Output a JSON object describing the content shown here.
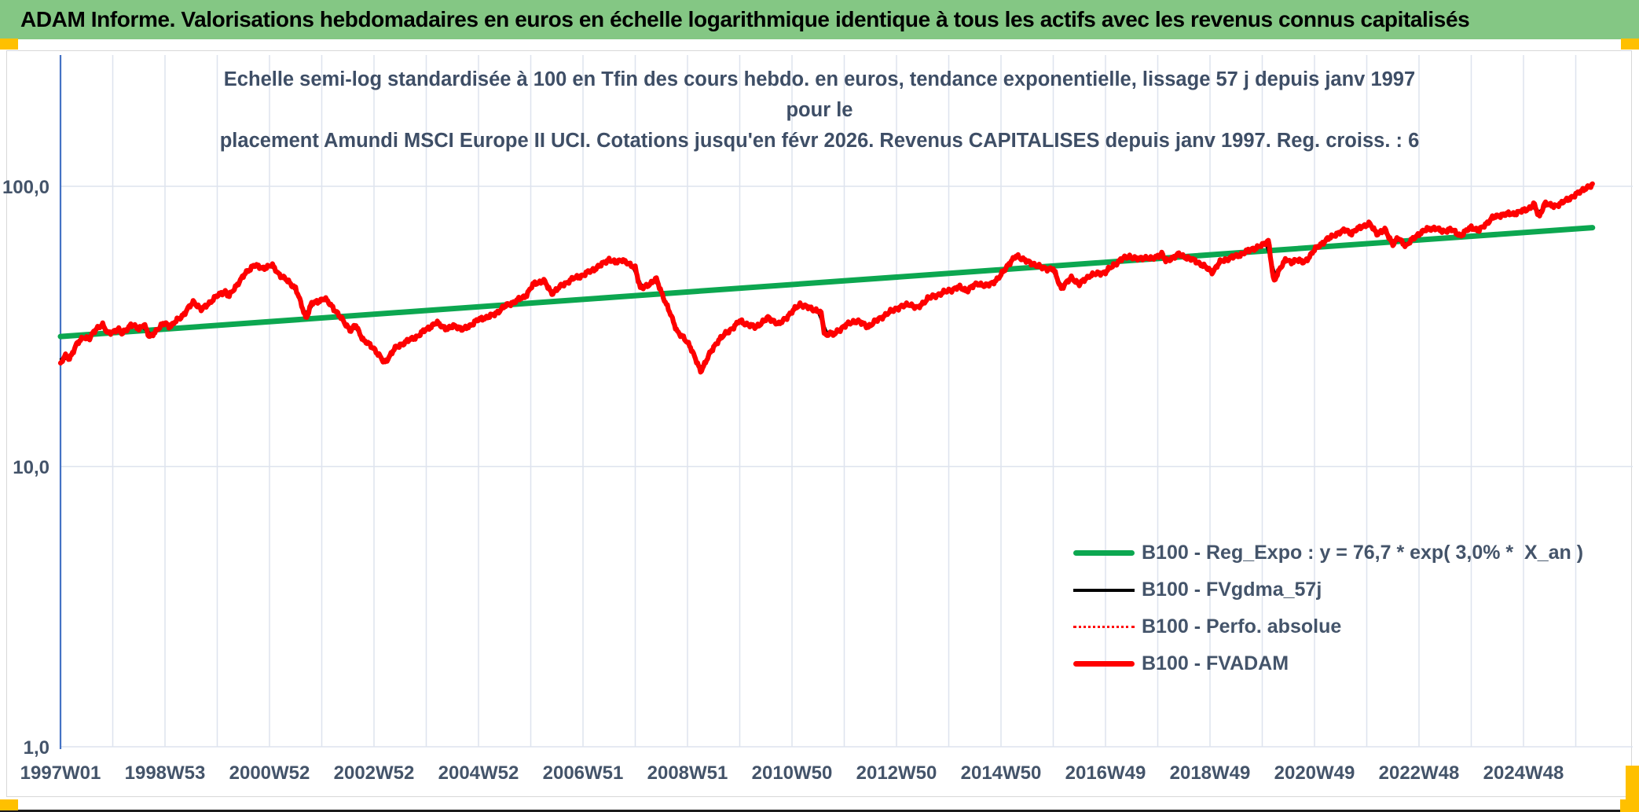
{
  "header": {
    "title": "ADAM Informe. Valorisations hebdomadaires en euros en échelle logarithmique identique à tous les actifs avec les revenus connus capitalisés"
  },
  "subtitle": {
    "line1": "Echelle semi-log standardisée à 100 en Tfin des cours hebdo. en euros, tendance exponentielle, lissage 57 j depuis janv 1997 pour le",
    "line2": "placement Amundi MSCI Europe II UCI. Cotations jusqu'en févr 2026. Revenus CAPITALISES depuis janv 1997. Reg. croiss. : 6"
  },
  "colors": {
    "banner_bg": "#84c784",
    "accent_orange": "#ffc000",
    "text_dark_blue": "#44546a",
    "grid": "#dee3ee",
    "axis_line_blue": "#4472c4",
    "trend_green": "#0ca750",
    "series_red": "#ff0000",
    "series_black": "#000000"
  },
  "x_axis": {
    "labels": [
      "1997W01",
      "1998W53",
      "2000W52",
      "2002W52",
      "2004W52",
      "2006W51",
      "2008W51",
      "2010W50",
      "2012W50",
      "2014W50",
      "2016W49",
      "2018W49",
      "2020W49",
      "2022W48",
      "2024W48"
    ]
  },
  "y_axis": {
    "labels": [
      "100,0",
      "10,0",
      "1,0"
    ],
    "values": [
      100,
      10,
      1
    ]
  },
  "legend": {
    "items": [
      {
        "label": "B100 - Reg_Expo : y = 76,7 * exp( 3,0% *  X_an )",
        "swatch": "green-solid"
      },
      {
        "label": "B100 - FVgdma_57j",
        "swatch": "black-thin"
      },
      {
        "label": "B100 - Perfo. absolue",
        "swatch": "red-dotted"
      },
      {
        "label": "B100 - FVADAM",
        "swatch": "red-solid"
      }
    ]
  },
  "chart_data": {
    "type": "line",
    "title": "Echelle semi-log standardisée à 100 en Tfin des cours hebdo. en euros, tendance exponentielle, lissage 57 j depuis janv 1997 pour le placement Amundi MSCI Europe II UCI. Cotations jusqu'en févr 2026. Revenus CAPITALISES depuis janv 1997. Reg. croiss. : 6",
    "x_axis": {
      "unit": "year (weekly cotations)",
      "range": [
        1997.0,
        2026.32
      ],
      "tick_step_years": 2
    },
    "y_axis": {
      "scale": "log10",
      "ticks": [
        1,
        10,
        100
      ],
      "range": [
        1,
        290
      ],
      "standardized": "100 at Tfin (févr 2026)"
    },
    "legend_position": "inside lower-right",
    "grid": true,
    "series": [
      {
        "name": "B100 - Reg_Expo : y = 76,7 * exp( 3,0% *  X_an )",
        "type": "exponential-trend",
        "color": "#0ca750",
        "points": [
          [
            1997.0,
            29.1
          ],
          [
            2026.32,
            71.2
          ]
        ]
      },
      {
        "name": "B100 - FVgdma_57j",
        "type": "line",
        "color": "#000000",
        "derived": "57-day (≈8-week) moving average of B100 - FVADAM"
      },
      {
        "name": "B100 - Perfo. absolue",
        "type": "line-dotted",
        "color": "#ff0000",
        "derived": "coincides with B100 - FVADAM (revenus capitalisés)"
      },
      {
        "name": "B100 - FVADAM",
        "type": "line",
        "color": "#ff0000",
        "points": [
          [
            1997.0,
            23.2
          ],
          [
            1997.08,
            24.8
          ],
          [
            1997.17,
            24.2
          ],
          [
            1997.3,
            27.2
          ],
          [
            1997.45,
            29.0
          ],
          [
            1997.55,
            28.6
          ],
          [
            1997.7,
            31.2
          ],
          [
            1997.8,
            32.3
          ],
          [
            1997.9,
            29.8
          ],
          [
            1998.0,
            30.3
          ],
          [
            1998.1,
            31.0
          ],
          [
            1998.17,
            29.7
          ],
          [
            1998.35,
            32.1
          ],
          [
            1998.5,
            31.0
          ],
          [
            1998.6,
            32.3
          ],
          [
            1998.7,
            28.8
          ],
          [
            1998.8,
            30.2
          ],
          [
            1999.0,
            32.6
          ],
          [
            1999.1,
            31.6
          ],
          [
            1999.35,
            34.8
          ],
          [
            1999.55,
            38.8
          ],
          [
            1999.7,
            36.2
          ],
          [
            1999.85,
            38.5
          ],
          [
            2000.0,
            40.6
          ],
          [
            2000.15,
            42.4
          ],
          [
            2000.22,
            40.3
          ],
          [
            2000.4,
            45.2
          ],
          [
            2000.55,
            49.1
          ],
          [
            2000.7,
            52.4
          ],
          [
            2000.85,
            51.0
          ],
          [
            2001.05,
            52.2
          ],
          [
            2001.2,
            48.2
          ],
          [
            2001.35,
            45.9
          ],
          [
            2001.5,
            43.3
          ],
          [
            2001.7,
            33.8
          ],
          [
            2001.8,
            38.0
          ],
          [
            2002.05,
            39.8
          ],
          [
            2002.2,
            37.3
          ],
          [
            2002.35,
            34.2
          ],
          [
            2002.56,
            30.5
          ],
          [
            2002.65,
            31.9
          ],
          [
            2002.8,
            28.2
          ],
          [
            2003.0,
            26.4
          ],
          [
            2003.2,
            23.4
          ],
          [
            2003.4,
            26.4
          ],
          [
            2003.6,
            27.8
          ],
          [
            2003.85,
            29.3
          ],
          [
            2004.0,
            30.9
          ],
          [
            2004.2,
            32.6
          ],
          [
            2004.4,
            30.9
          ],
          [
            2004.55,
            31.9
          ],
          [
            2004.7,
            30.7
          ],
          [
            2005.0,
            33.4
          ],
          [
            2005.3,
            34.8
          ],
          [
            2005.5,
            37.3
          ],
          [
            2005.7,
            38.8
          ],
          [
            2005.9,
            40.6
          ],
          [
            2006.05,
            44.7
          ],
          [
            2006.25,
            46.1
          ],
          [
            2006.4,
            41.5
          ],
          [
            2006.6,
            44.3
          ],
          [
            2006.8,
            46.7
          ],
          [
            2007.0,
            48.2
          ],
          [
            2007.2,
            50.4
          ],
          [
            2007.35,
            52.5
          ],
          [
            2007.5,
            54.9
          ],
          [
            2007.62,
            53.3
          ],
          [
            2007.75,
            54.9
          ],
          [
            2007.9,
            52.2
          ],
          [
            2008.0,
            51.6
          ],
          [
            2008.1,
            42.9
          ],
          [
            2008.25,
            44.5
          ],
          [
            2008.4,
            46.7
          ],
          [
            2008.55,
            39.8
          ],
          [
            2008.8,
            30.5
          ],
          [
            2008.9,
            29.0
          ],
          [
            2009.05,
            27.0
          ],
          [
            2009.25,
            21.8
          ],
          [
            2009.4,
            24.8
          ],
          [
            2009.6,
            28.4
          ],
          [
            2009.8,
            30.5
          ],
          [
            2010.0,
            33.0
          ],
          [
            2010.3,
            31.4
          ],
          [
            2010.55,
            34.0
          ],
          [
            2010.75,
            32.1
          ],
          [
            2011.0,
            35.6
          ],
          [
            2011.15,
            38.0
          ],
          [
            2011.35,
            36.7
          ],
          [
            2011.55,
            35.6
          ],
          [
            2011.62,
            30.0
          ],
          [
            2011.68,
            29.1
          ],
          [
            2011.72,
            30.5
          ],
          [
            2011.78,
            29.3
          ],
          [
            2012.0,
            31.8
          ],
          [
            2012.25,
            33.2
          ],
          [
            2012.45,
            31.5
          ],
          [
            2012.7,
            34.0
          ],
          [
            2013.0,
            36.7
          ],
          [
            2013.25,
            38.0
          ],
          [
            2013.4,
            36.7
          ],
          [
            2013.6,
            39.8
          ],
          [
            2013.8,
            41.1
          ],
          [
            2014.0,
            42.4
          ],
          [
            2014.2,
            43.7
          ],
          [
            2014.35,
            42.4
          ],
          [
            2014.55,
            45.2
          ],
          [
            2014.7,
            43.9
          ],
          [
            2014.95,
            46.7
          ],
          [
            2015.1,
            51.6
          ],
          [
            2015.3,
            56.6
          ],
          [
            2015.5,
            53.9
          ],
          [
            2015.65,
            52.5
          ],
          [
            2015.8,
            51.0
          ],
          [
            2016.0,
            50.7
          ],
          [
            2016.15,
            43.3
          ],
          [
            2016.35,
            47.2
          ],
          [
            2016.5,
            44.7
          ],
          [
            2016.7,
            48.2
          ],
          [
            2016.85,
            48.7
          ],
          [
            2017.0,
            49.5
          ],
          [
            2017.3,
            54.9
          ],
          [
            2017.45,
            56.3
          ],
          [
            2017.6,
            55.0
          ],
          [
            2017.75,
            55.8
          ],
          [
            2017.88,
            54.9
          ],
          [
            2018.0,
            56.6
          ],
          [
            2018.08,
            57.5
          ],
          [
            2018.15,
            53.9
          ],
          [
            2018.4,
            57.2
          ],
          [
            2018.6,
            55.2
          ],
          [
            2018.75,
            53.9
          ],
          [
            2019.0,
            50.1
          ],
          [
            2019.05,
            49.5
          ],
          [
            2019.2,
            53.9
          ],
          [
            2019.4,
            55.6
          ],
          [
            2019.6,
            57.2
          ],
          [
            2019.8,
            59.7
          ],
          [
            2020.0,
            61.4
          ],
          [
            2020.12,
            64.3
          ],
          [
            2020.22,
            45.2
          ],
          [
            2020.35,
            51.6
          ],
          [
            2020.45,
            54.9
          ],
          [
            2020.55,
            53.3
          ],
          [
            2020.65,
            54.9
          ],
          [
            2020.8,
            53.3
          ],
          [
            2021.0,
            59.3
          ],
          [
            2021.2,
            63.9
          ],
          [
            2021.4,
            67.3
          ],
          [
            2021.6,
            69.9
          ],
          [
            2021.7,
            67.8
          ],
          [
            2021.9,
            71.9
          ],
          [
            2022.05,
            73.5
          ],
          [
            2022.2,
            67.8
          ],
          [
            2022.35,
            69.9
          ],
          [
            2022.5,
            62.2
          ],
          [
            2022.6,
            65.3
          ],
          [
            2022.75,
            61.4
          ],
          [
            2023.0,
            67.8
          ],
          [
            2023.15,
            70.2
          ],
          [
            2023.3,
            71.0
          ],
          [
            2023.45,
            69.0
          ],
          [
            2023.6,
            70.2
          ],
          [
            2023.8,
            66.8
          ],
          [
            2024.0,
            71.5
          ],
          [
            2024.15,
            69.5
          ],
          [
            2024.4,
            77.1
          ],
          [
            2024.6,
            79.3
          ],
          [
            2024.8,
            79.8
          ],
          [
            2025.0,
            81.8
          ],
          [
            2025.1,
            83.3
          ],
          [
            2025.2,
            86.5
          ],
          [
            2025.3,
            77.5
          ],
          [
            2025.4,
            87.0
          ],
          [
            2025.55,
            85.1
          ],
          [
            2025.7,
            86.2
          ],
          [
            2025.85,
            90.1
          ],
          [
            2026.0,
            93.0
          ],
          [
            2026.15,
            97.8
          ],
          [
            2026.32,
            100.5
          ]
        ]
      }
    ]
  }
}
